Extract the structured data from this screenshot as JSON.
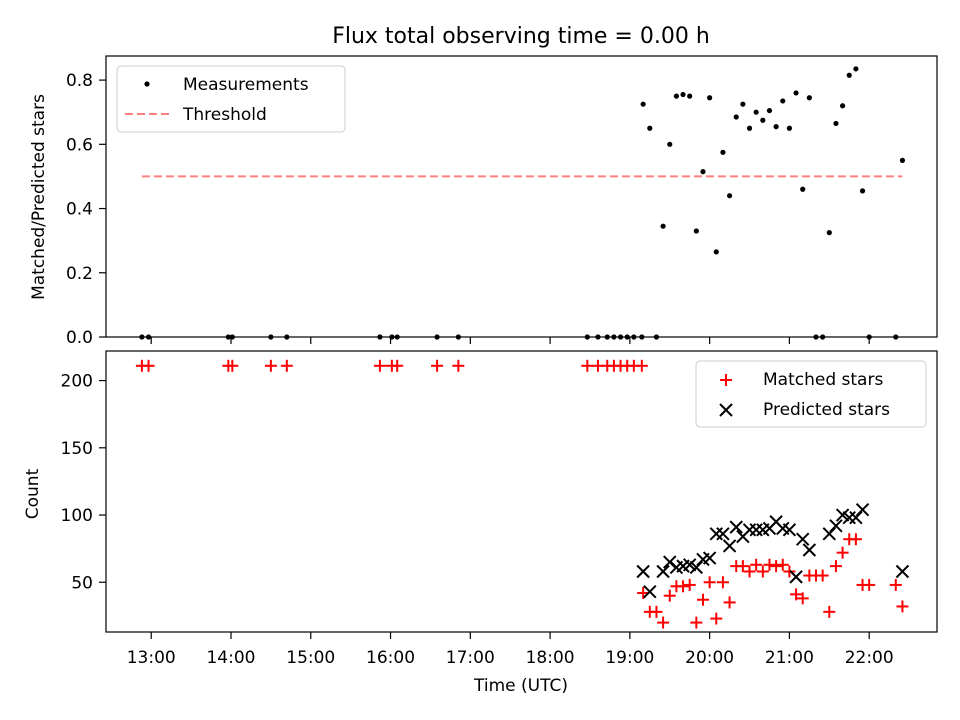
{
  "chart_data": [
    {
      "type": "scatter",
      "title": "Flux total observing time = 0.00 h",
      "xlabel": "",
      "ylabel": "Matched/Predicted stars",
      "ylim": [
        0,
        0.875
      ],
      "yticks": [
        "0.0",
        "0.2",
        "0.4",
        "0.6",
        "0.8"
      ],
      "grid": false,
      "legend_position": "top-left",
      "legend": [
        "Measurements",
        "Threshold"
      ],
      "threshold": {
        "value": 0.5,
        "x_start": "12:53",
        "x_end": "22:25",
        "color": "#ff7f7f"
      },
      "series": [
        {
          "name": "Measurements",
          "color": "#000000",
          "points": [
            [
              "12:53",
              0.0
            ],
            [
              "12:58",
              0.0
            ],
            [
              "13:58",
              0.0
            ],
            [
              "14:01",
              0.0
            ],
            [
              "14:30",
              0.0
            ],
            [
              "14:42",
              0.0
            ],
            [
              "15:52",
              0.0
            ],
            [
              "16:01",
              0.0
            ],
            [
              "16:05",
              0.0
            ],
            [
              "16:35",
              0.0
            ],
            [
              "16:51",
              0.0
            ],
            [
              "18:28",
              0.0
            ],
            [
              "18:36",
              0.0
            ],
            [
              "18:43",
              0.0
            ],
            [
              "18:48",
              0.0
            ],
            [
              "18:53",
              0.0
            ],
            [
              "18:58",
              0.0
            ],
            [
              "19:03",
              0.0
            ],
            [
              "19:09",
              0.0
            ],
            [
              "19:20",
              0.0
            ],
            [
              "19:10",
              0.725
            ],
            [
              "19:15",
              0.65
            ],
            [
              "19:25",
              0.345
            ],
            [
              "19:30",
              0.6
            ],
            [
              "19:35",
              0.75
            ],
            [
              "19:40",
              0.755
            ],
            [
              "19:45",
              0.75
            ],
            [
              "19:50",
              0.33
            ],
            [
              "19:55",
              0.515
            ],
            [
              "20:00",
              0.745
            ],
            [
              "20:05",
              0.265
            ],
            [
              "20:10",
              0.575
            ],
            [
              "20:15",
              0.44
            ],
            [
              "20:20",
              0.685
            ],
            [
              "20:25",
              0.725
            ],
            [
              "20:30",
              0.65
            ],
            [
              "20:35",
              0.7
            ],
            [
              "20:40",
              0.675
            ],
            [
              "20:45",
              0.705
            ],
            [
              "20:50",
              0.655
            ],
            [
              "20:55",
              0.735
            ],
            [
              "21:00",
              0.65
            ],
            [
              "21:05",
              0.76
            ],
            [
              "21:10",
              0.46
            ],
            [
              "21:15",
              0.745
            ],
            [
              "21:20",
              0.0
            ],
            [
              "21:25",
              0.0
            ],
            [
              "21:30",
              0.325
            ],
            [
              "21:35",
              0.665
            ],
            [
              "21:40",
              0.72
            ],
            [
              "21:45",
              0.815
            ],
            [
              "21:50",
              0.835
            ],
            [
              "21:55",
              0.455
            ],
            [
              "22:00",
              0.0
            ],
            [
              "22:20",
              0.0
            ],
            [
              "22:25",
              0.55
            ]
          ]
        }
      ]
    },
    {
      "type": "scatter",
      "title": "",
      "xlabel": "Time (UTC)",
      "ylabel": "Count",
      "ylim": [
        13,
        222
      ],
      "yticks": [
        "50",
        "100",
        "150",
        "200"
      ],
      "xticks": [
        "13:00",
        "14:00",
        "15:00",
        "16:00",
        "17:00",
        "18:00",
        "19:00",
        "20:00",
        "21:00",
        "22:00"
      ],
      "grid": false,
      "legend_position": "top-right",
      "legend": [
        "Matched stars",
        "Predicted stars"
      ],
      "series": [
        {
          "name": "Matched stars",
          "marker": "+",
          "color": "#ff0000",
          "points": [
            [
              "12:53",
              211
            ],
            [
              "12:58",
              211
            ],
            [
              "13:58",
              211
            ],
            [
              "14:01",
              211
            ],
            [
              "14:30",
              211
            ],
            [
              "14:42",
              211
            ],
            [
              "15:52",
              211
            ],
            [
              "16:01",
              211
            ],
            [
              "16:05",
              211
            ],
            [
              "16:35",
              211
            ],
            [
              "16:51",
              211
            ],
            [
              "18:28",
              211
            ],
            [
              "18:36",
              211
            ],
            [
              "18:43",
              211
            ],
            [
              "18:48",
              211
            ],
            [
              "18:53",
              211
            ],
            [
              "18:58",
              211
            ],
            [
              "19:03",
              211
            ],
            [
              "19:09",
              211
            ],
            [
              "19:10",
              42
            ],
            [
              "19:15",
              28
            ],
            [
              "19:20",
              28
            ],
            [
              "19:25",
              20
            ],
            [
              "19:30",
              40
            ],
            [
              "19:35",
              47
            ],
            [
              "19:40",
              47
            ],
            [
              "19:45",
              48
            ],
            [
              "19:50",
              20
            ],
            [
              "19:55",
              37
            ],
            [
              "20:00",
              50
            ],
            [
              "20:05",
              23
            ],
            [
              "20:10",
              50
            ],
            [
              "20:15",
              35
            ],
            [
              "20:20",
              62
            ],
            [
              "20:25",
              62
            ],
            [
              "20:30",
              58
            ],
            [
              "20:35",
              63
            ],
            [
              "20:40",
              58
            ],
            [
              "20:45",
              63
            ],
            [
              "20:50",
              62
            ],
            [
              "20:55",
              63
            ],
            [
              "21:00",
              58
            ],
            [
              "21:05",
              41
            ],
            [
              "21:10",
              38
            ],
            [
              "21:15",
              55
            ],
            [
              "21:20",
              55
            ],
            [
              "21:25",
              55
            ],
            [
              "21:30",
              28
            ],
            [
              "21:35",
              62
            ],
            [
              "21:40",
              72
            ],
            [
              "21:45",
              82
            ],
            [
              "21:50",
              82
            ],
            [
              "21:55",
              48
            ],
            [
              "22:00",
              48
            ],
            [
              "22:20",
              48
            ],
            [
              "22:25",
              32
            ]
          ]
        },
        {
          "name": "Predicted stars",
          "marker": "x",
          "color": "#000000",
          "points": [
            [
              "19:10",
              58
            ],
            [
              "19:15",
              43
            ],
            [
              "19:25",
              58
            ],
            [
              "19:30",
              65
            ],
            [
              "19:35",
              61
            ],
            [
              "19:40",
              62
            ],
            [
              "19:45",
              63
            ],
            [
              "19:50",
              61
            ],
            [
              "19:55",
              67
            ],
            [
              "20:00",
              68
            ],
            [
              "20:05",
              86
            ],
            [
              "20:10",
              86
            ],
            [
              "20:15",
              77
            ],
            [
              "20:20",
              91
            ],
            [
              "20:25",
              84
            ],
            [
              "20:30",
              89
            ],
            [
              "20:35",
              89
            ],
            [
              "20:40",
              89
            ],
            [
              "20:45",
              90
            ],
            [
              "20:50",
              95
            ],
            [
              "20:55",
              90
            ],
            [
              "21:00",
              89
            ],
            [
              "21:05",
              54
            ],
            [
              "21:10",
              82
            ],
            [
              "21:15",
              74
            ],
            [
              "21:30",
              86
            ],
            [
              "21:35",
              92
            ],
            [
              "21:40",
              100
            ],
            [
              "21:45",
              98
            ],
            [
              "21:50",
              98
            ],
            [
              "21:55",
              104
            ],
            [
              "22:25",
              58
            ]
          ]
        }
      ]
    }
  ]
}
